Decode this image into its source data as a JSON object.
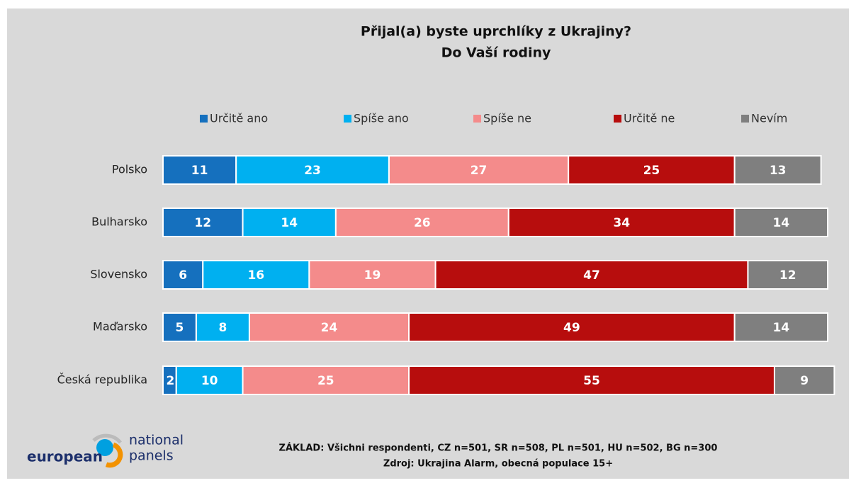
{
  "chart_data": {
    "type": "stacked_barh",
    "title": "Přijal(a) byste uprchlíky z Ukrajiny?",
    "subtitle": "Do Vaší rodiny",
    "categories": [
      "Polsko",
      "Bulharsko",
      "Slovensko",
      "Maďarsko",
      "Česká republika"
    ],
    "series": [
      {
        "name": "Určitě ano",
        "color": "#1570be",
        "values": [
          11,
          12,
          6,
          5,
          2
        ]
      },
      {
        "name": "Spíše ano",
        "color": "#00b0f0",
        "values": [
          23,
          14,
          16,
          8,
          10
        ]
      },
      {
        "name": "Spíše ne",
        "color": "#f48b8b",
        "values": [
          27,
          26,
          19,
          24,
          25
        ]
      },
      {
        "name": "Určitě ne",
        "color": "#b70d0d",
        "values": [
          25,
          34,
          47,
          49,
          55
        ]
      },
      {
        "name": "Nevím",
        "color": "#7f7f7f",
        "values": [
          13,
          14,
          12,
          14,
          9
        ]
      }
    ],
    "xlim": [
      0,
      100
    ],
    "legend": "top",
    "notes": [
      "ZÁKLAD: Všichni respondenti, CZ n=501, SR n=508, PL n=501, HU n=502, BG n=300",
      "Zdroj: Ukrajina Alarm, obecná populace 15+"
    ],
    "logo": {
      "left": "european",
      "top": "national",
      "bottom": "panels"
    }
  }
}
